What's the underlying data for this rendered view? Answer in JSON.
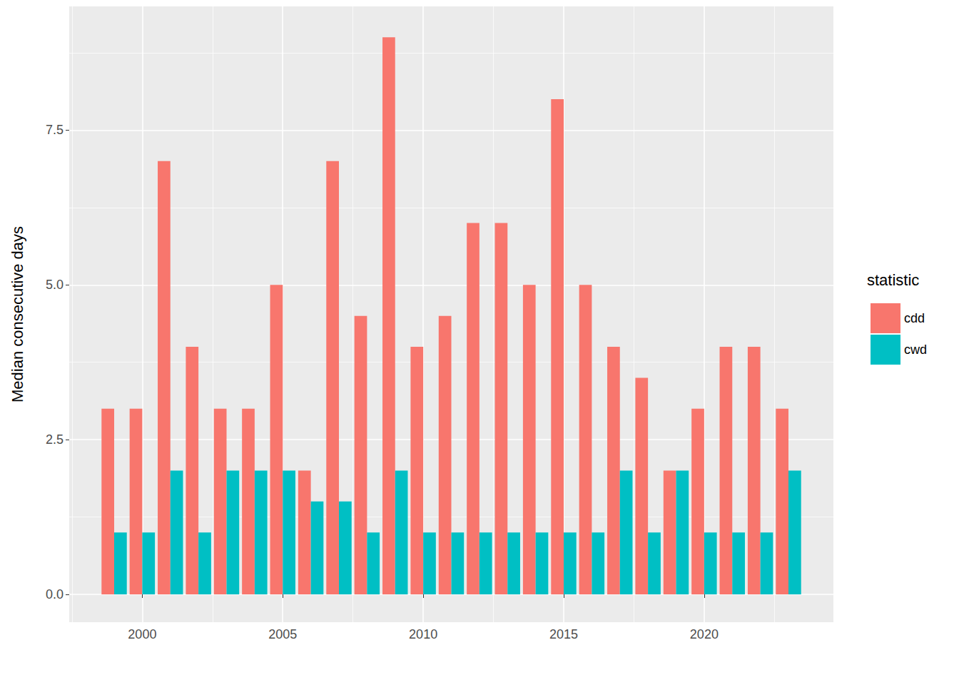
{
  "chart_data": {
    "type": "bar",
    "y_label": "Median consecutive days",
    "legend_title": "statistic",
    "x": [
      1999,
      2000,
      2001,
      2002,
      2003,
      2004,
      2005,
      2006,
      2007,
      2008,
      2009,
      2010,
      2011,
      2012,
      2013,
      2014,
      2015,
      2016,
      2017,
      2018,
      2019,
      2020,
      2021,
      2022,
      2023
    ],
    "series": [
      {
        "name": "cdd",
        "color": "#F8766D",
        "values": [
          3,
          3,
          7,
          4,
          3,
          3,
          5,
          2,
          7,
          4.5,
          9,
          4,
          4.5,
          6,
          6,
          5,
          8,
          5,
          4,
          3.5,
          2,
          3,
          4,
          4,
          3
        ]
      },
      {
        "name": "cwd",
        "color": "#00BFC4",
        "values": [
          1,
          1,
          2,
          1,
          2,
          2,
          2,
          1.5,
          1.5,
          1,
          2,
          1,
          1,
          1,
          1,
          1,
          1,
          1,
          2,
          1,
          2,
          1,
          1,
          1,
          2
        ]
      }
    ],
    "xlim": [
      1997.4,
      2024.6
    ],
    "xticks": [
      2000,
      2005,
      2010,
      2015,
      2020
    ],
    "ylim": [
      -0.45,
      9.5
    ],
    "yticks": [
      {
        "value": 0,
        "label": "0.0"
      },
      {
        "value": 2.5,
        "label": "2.5"
      },
      {
        "value": 5,
        "label": "5.0"
      },
      {
        "value": 7.5,
        "label": "7.5"
      }
    ],
    "grid": true,
    "legend": "right"
  }
}
